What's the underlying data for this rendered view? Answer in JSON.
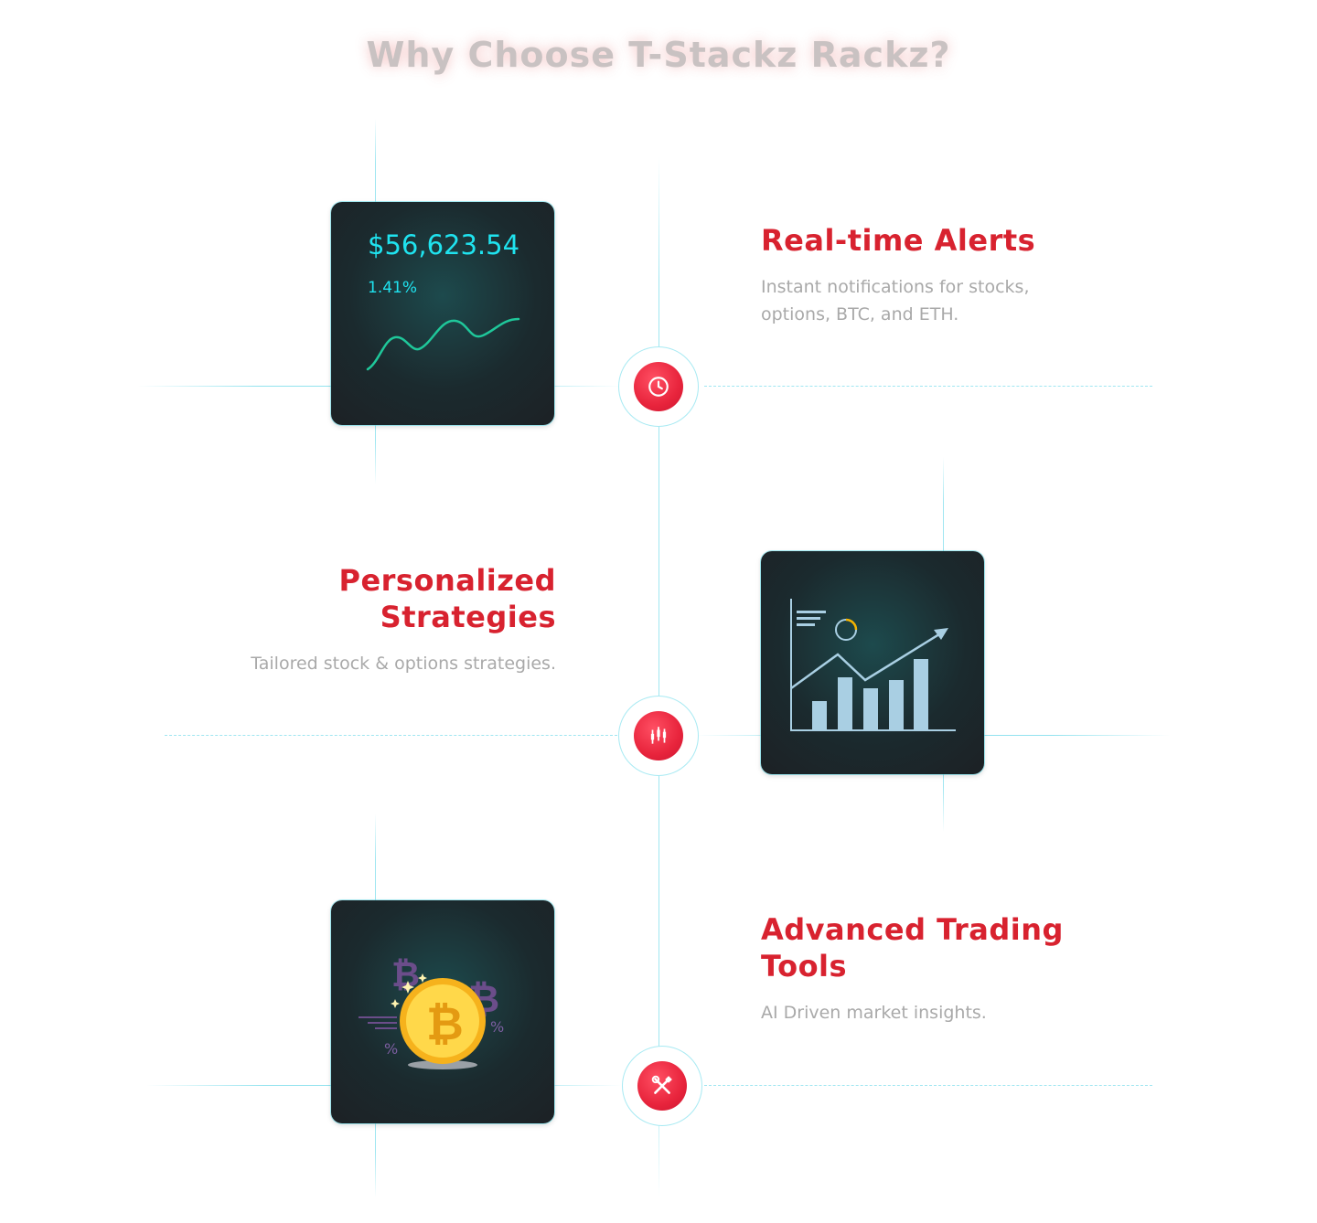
{
  "header": {
    "title": "Why Choose T-Stackz Rackz?"
  },
  "features": [
    {
      "title": "Real-time Alerts",
      "description": "Instant notifications for stocks, options, BTC, and ETH.",
      "icon": "clock-icon",
      "card": {
        "price": "$56,623.54",
        "change": "1.41%"
      }
    },
    {
      "title_line1": "Personalized",
      "title_line2": "Strategies",
      "description": "Tailored stock & options strategies.",
      "icon": "candlestick-icon"
    },
    {
      "title_line1": "Advanced Trading",
      "title_line2": "Tools",
      "description": "AI Driven market insights.",
      "icon": "tools-icon"
    }
  ],
  "colors": {
    "accent": "#d8222f",
    "cyan": "#1fe3ef",
    "node_red": "#e8243c"
  }
}
